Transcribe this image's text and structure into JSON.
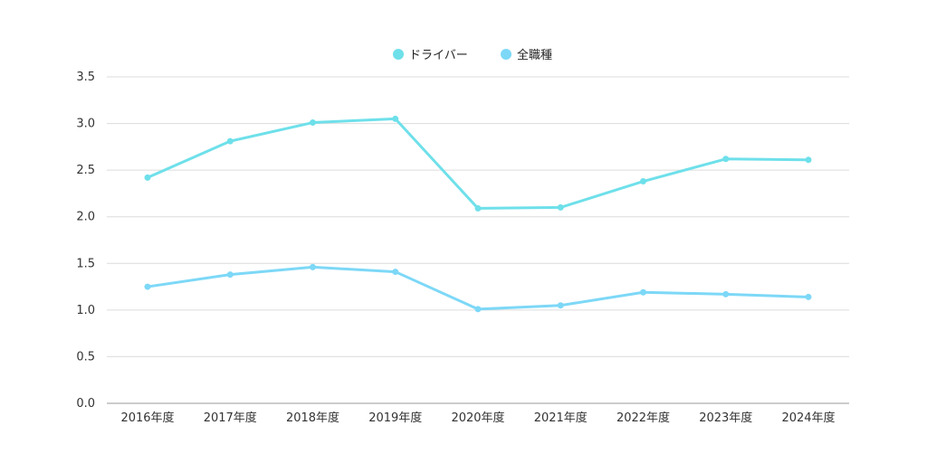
{
  "chart_data": {
    "type": "line",
    "title": "",
    "xlabel": "",
    "ylabel": "",
    "categories": [
      "2016年度",
      "2017年度",
      "2018年度",
      "2019年度",
      "2020年度",
      "2021年度",
      "2022年度",
      "2023年度",
      "2024年度"
    ],
    "ylim": [
      0,
      3.5
    ],
    "yticks": [
      "0.0",
      "0.5",
      "1.0",
      "1.5",
      "2.0",
      "2.5",
      "3.0",
      "3.5"
    ],
    "grid": true,
    "legend_position": "top-center",
    "series": [
      {
        "name": "ドライバー",
        "color": "#6ee0ea",
        "values": [
          2.42,
          2.81,
          3.01,
          3.05,
          2.09,
          2.1,
          2.38,
          2.62,
          2.61
        ]
      },
      {
        "name": "全職種",
        "color": "#7dd8f7",
        "values": [
          1.25,
          1.38,
          1.46,
          1.41,
          1.01,
          1.05,
          1.19,
          1.17,
          1.14
        ]
      }
    ]
  }
}
